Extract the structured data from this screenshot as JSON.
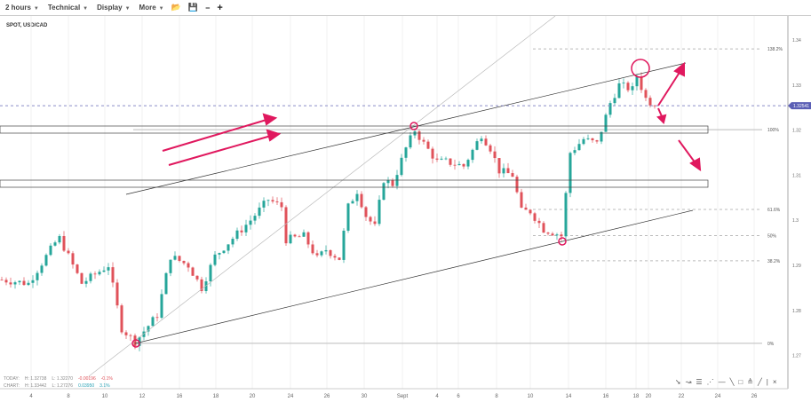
{
  "toolbar": {
    "timeframe": "2 hours",
    "technical": "Technical",
    "display": "Display",
    "more": "More",
    "open_icon": "folder-open-icon",
    "save_icon": "save-icon",
    "zoom_out": "−",
    "zoom_in": "+"
  },
  "symbol": "SPOT, USD/CAD",
  "stats": {
    "today": {
      "label": "TODAY:",
      "high": "H: 1.32738",
      "low": "L: 1.32270",
      "change": "-0.00196",
      "pct": "-0.1%"
    },
    "chart": {
      "label": "CHART:",
      "high": "H: 1.33442",
      "low": "L: 1.27276",
      "change": "0.03950",
      "pct": "3.1%"
    }
  },
  "colors": {
    "up": "#26a69a",
    "down": "#e0525a",
    "price_tag": "#5b5fb5",
    "markers": "#e0185e",
    "arrows": "#e0185e"
  },
  "chart_data": {
    "type": "candlestick",
    "ylim": [
      1.268,
      1.345
    ],
    "yticks": [
      "1.34",
      "1.33",
      "1.32",
      "1.31",
      "1.3",
      "1.29",
      "1.28",
      "1.27"
    ],
    "ytick_values": [
      1.34,
      1.33,
      1.32,
      1.31,
      1.3,
      1.29,
      1.28,
      1.27
    ],
    "xticks": [
      "4",
      "8",
      "10",
      "12",
      "16",
      "18",
      "20",
      "24",
      "26",
      "30",
      "Sept",
      "4",
      "6",
      "8",
      "10",
      "14",
      "16",
      "18",
      "20",
      "22",
      "24",
      "26"
    ],
    "current_price": "1.32541",
    "current_price_value": 1.32541,
    "price_path": [
      [
        0,
        1.2868
      ],
      [
        6,
        1.286
      ],
      [
        12,
        1.295
      ],
      [
        13,
        1.296
      ],
      [
        18,
        1.286
      ],
      [
        24,
        1.29
      ],
      [
        27,
        1.276
      ],
      [
        30,
        1.273
      ],
      [
        35,
        1.279
      ],
      [
        38,
        1.292
      ],
      [
        42,
        1.29
      ],
      [
        45,
        1.285
      ],
      [
        48,
        1.292
      ],
      [
        52,
        1.296
      ],
      [
        56,
        1.3
      ],
      [
        60,
        1.3046
      ],
      [
        63,
        1.303
      ],
      [
        64,
        1.2957
      ],
      [
        68,
        1.2965
      ],
      [
        71,
        1.2915
      ],
      [
        73,
        1.2935
      ],
      [
        76,
        1.2915
      ],
      [
        78,
        1.303
      ],
      [
        80,
        1.3065
      ],
      [
        82,
        1.301
      ],
      [
        84,
        1.2985
      ],
      [
        86,
        1.309
      ],
      [
        88,
        1.308
      ],
      [
        91,
        1.316
      ],
      [
        93,
        1.32
      ],
      [
        95,
        1.317
      ],
      [
        98,
        1.313
      ],
      [
        100,
        1.313
      ],
      [
        104,
        1.312
      ],
      [
        108,
        1.319
      ],
      [
        110,
        1.316
      ],
      [
        112,
        1.311
      ],
      [
        115,
        1.31
      ],
      [
        117,
        1.302
      ],
      [
        119,
        1.302
      ],
      [
        122,
        1.298
      ],
      [
        125,
        1.297
      ],
      [
        126,
        1.2965
      ],
      [
        128,
        1.315
      ],
      [
        131,
        1.318
      ],
      [
        134,
        1.317
      ],
      [
        137,
        1.326
      ],
      [
        139,
        1.33
      ],
      [
        142,
        1.329
      ],
      [
        143,
        1.332
      ],
      [
        145,
        1.327
      ],
      [
        147,
        1.3254
      ]
    ],
    "fib_levels": [
      {
        "label": "138.2%",
        "price": 1.338
      },
      {
        "label": "100%",
        "price": 1.3201
      },
      {
        "label": "61.6%",
        "price": 1.3024
      },
      {
        "label": "50%",
        "price": 1.2966
      },
      {
        "label": "38.2%",
        "price": 1.291
      },
      {
        "label": "0%",
        "price": 1.2727
      }
    ]
  }
}
